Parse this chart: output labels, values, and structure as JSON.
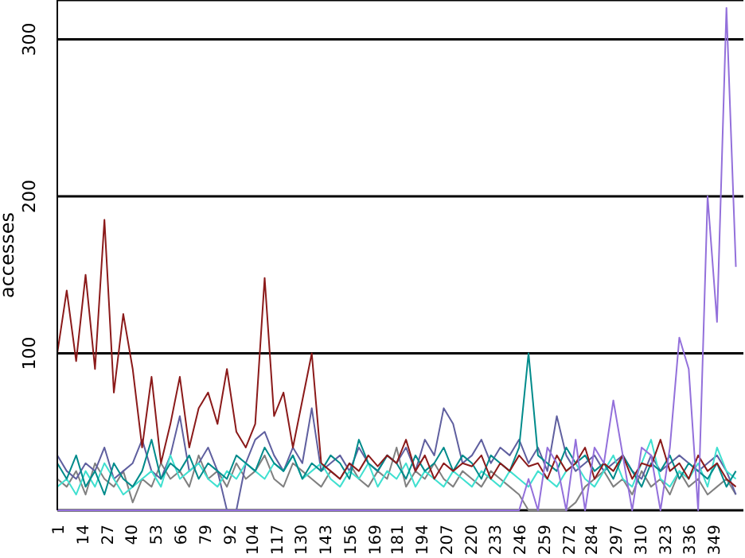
{
  "chart_data": {
    "type": "line",
    "ylabel": "accesses",
    "ylim": [
      0,
      325
    ],
    "yticks": [
      100,
      200,
      300
    ],
    "xlim": [
      1,
      365
    ],
    "xticks": [
      1,
      14,
      27,
      40,
      53,
      66,
      79,
      92,
      104,
      117,
      130,
      143,
      156,
      169,
      181,
      194,
      207,
      220,
      233,
      246,
      259,
      272,
      284,
      297,
      310,
      323,
      336,
      349
    ],
    "grid": "y",
    "marker": "none",
    "line_style": "solid",
    "x": [
      1,
      6,
      11,
      16,
      21,
      26,
      31,
      36,
      41,
      46,
      51,
      56,
      61,
      66,
      71,
      76,
      81,
      86,
      91,
      96,
      101,
      106,
      111,
      116,
      121,
      126,
      131,
      136,
      141,
      146,
      151,
      156,
      161,
      166,
      171,
      176,
      181,
      186,
      191,
      196,
      201,
      206,
      211,
      216,
      221,
      226,
      231,
      236,
      241,
      246,
      251,
      256,
      261,
      266,
      271,
      276,
      281,
      286,
      291,
      296,
      301,
      306,
      311,
      316,
      321,
      326,
      331,
      336,
      341,
      346,
      351,
      356,
      361
    ],
    "series": [
      {
        "color": "#808080",
        "values": [
          20,
          15,
          25,
          10,
          30,
          20,
          15,
          25,
          5,
          20,
          15,
          30,
          20,
          25,
          15,
          35,
          20,
          25,
          15,
          30,
          20,
          25,
          35,
          20,
          15,
          30,
          25,
          20,
          15,
          25,
          20,
          30,
          20,
          15,
          25,
          20,
          40,
          15,
          25,
          20,
          30,
          20,
          15,
          25,
          20,
          15,
          25,
          20,
          15,
          10,
          0,
          0,
          0,
          0,
          0,
          5,
          15,
          20,
          25,
          15,
          20,
          10,
          25,
          15,
          20,
          10,
          25,
          15,
          20,
          10,
          15,
          20,
          10
        ]
      },
      {
        "color": "#5f5f9f",
        "values": [
          35,
          25,
          20,
          30,
          25,
          40,
          20,
          25,
          30,
          45,
          25,
          20,
          35,
          60,
          25,
          30,
          40,
          25,
          0,
          0,
          30,
          45,
          50,
          35,
          25,
          40,
          30,
          65,
          25,
          30,
          35,
          25,
          40,
          30,
          25,
          35,
          30,
          40,
          25,
          45,
          35,
          65,
          55,
          30,
          35,
          45,
          30,
          40,
          35,
          45,
          30,
          40,
          25,
          60,
          35,
          25,
          30,
          35,
          25,
          30,
          35,
          25,
          20,
          35,
          25,
          30,
          35,
          30,
          25,
          30,
          35,
          25,
          10
        ]
      },
      {
        "color": "#40e0d0",
        "values": [
          15,
          20,
          10,
          25,
          15,
          30,
          20,
          10,
          15,
          20,
          25,
          15,
          35,
          20,
          25,
          30,
          20,
          15,
          25,
          20,
          30,
          25,
          20,
          30,
          25,
          35,
          20,
          25,
          30,
          20,
          15,
          25,
          20,
          30,
          15,
          25,
          20,
          30,
          15,
          25,
          20,
          15,
          25,
          20,
          15,
          25,
          20,
          15,
          25,
          20,
          15,
          25,
          20,
          15,
          25,
          30,
          20,
          15,
          25,
          35,
          20,
          15,
          30,
          45,
          20,
          15,
          25,
          20,
          30,
          15,
          40,
          25,
          20
        ]
      },
      {
        "color": "#008b8b",
        "values": [
          30,
          20,
          35,
          15,
          25,
          10,
          30,
          20,
          15,
          25,
          45,
          20,
          30,
          25,
          35,
          20,
          30,
          25,
          20,
          35,
          30,
          25,
          40,
          30,
          25,
          35,
          20,
          30,
          25,
          35,
          30,
          20,
          45,
          30,
          25,
          35,
          30,
          20,
          35,
          25,
          30,
          40,
          25,
          35,
          30,
          20,
          35,
          30,
          25,
          40,
          100,
          35,
          30,
          25,
          40,
          30,
          35,
          25,
          30,
          20,
          35,
          25,
          15,
          30,
          25,
          35,
          20,
          30,
          25,
          20,
          30,
          15,
          25
        ]
      },
      {
        "color": "#8b1a1a",
        "values": [
          100,
          140,
          95,
          150,
          90,
          185,
          75,
          125,
          90,
          40,
          85,
          30,
          55,
          85,
          40,
          65,
          75,
          55,
          90,
          50,
          40,
          55,
          148,
          60,
          75,
          40,
          70,
          100,
          30,
          25,
          20,
          30,
          25,
          35,
          28,
          35,
          30,
          45,
          25,
          35,
          20,
          30,
          25,
          30,
          28,
          35,
          20,
          30,
          25,
          35,
          28,
          30,
          20,
          35,
          25,
          30,
          40,
          20,
          30,
          25,
          35,
          20,
          30,
          28,
          45,
          25,
          30,
          20,
          35,
          25,
          30,
          20,
          15
        ]
      },
      {
        "color": "#9370db",
        "values": [
          0,
          0,
          0,
          0,
          0,
          0,
          0,
          0,
          0,
          0,
          0,
          0,
          0,
          0,
          0,
          0,
          0,
          0,
          0,
          0,
          0,
          0,
          0,
          0,
          0,
          0,
          0,
          0,
          0,
          0,
          0,
          0,
          0,
          0,
          0,
          0,
          0,
          0,
          0,
          0,
          0,
          0,
          0,
          0,
          0,
          0,
          0,
          0,
          0,
          0,
          20,
          0,
          40,
          30,
          0,
          45,
          0,
          40,
          30,
          70,
          35,
          0,
          40,
          35,
          0,
          40,
          110,
          90,
          0,
          200,
          120,
          320,
          155
        ]
      }
    ]
  }
}
